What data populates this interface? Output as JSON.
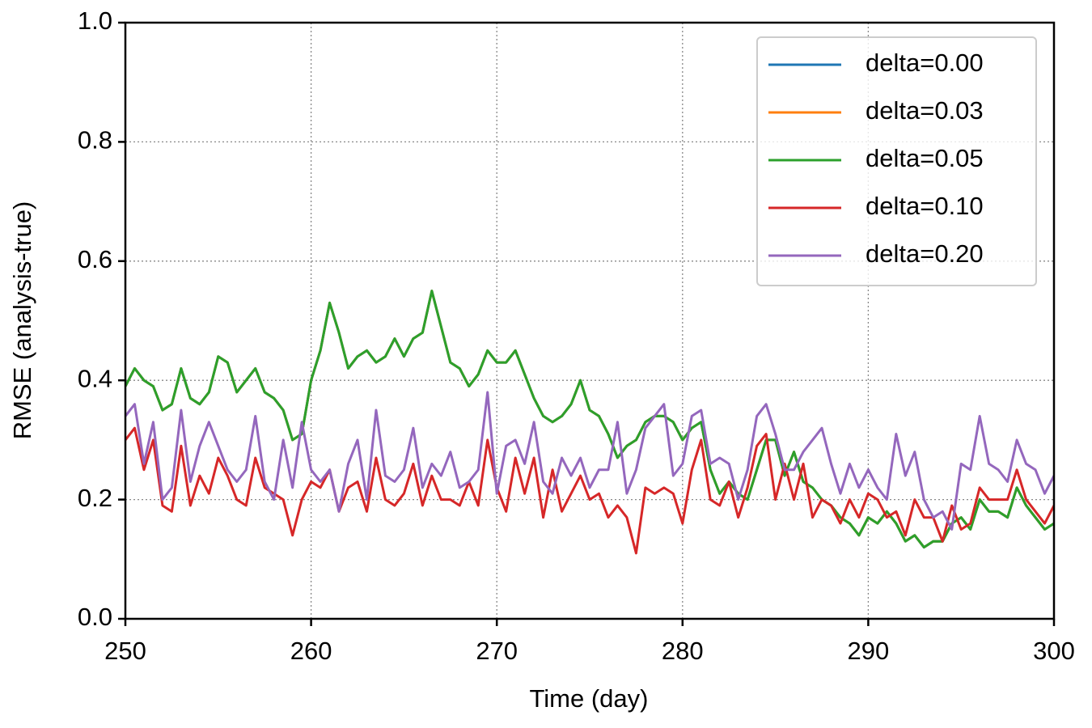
{
  "chart_data": {
    "type": "line",
    "x_label": "Time (day)",
    "y_label": "RMSE (analysis-true)",
    "xlim": [
      250,
      300
    ],
    "ylim": [
      0,
      1
    ],
    "xticks": [
      250,
      260,
      270,
      280,
      290,
      300
    ],
    "yticks": [
      {
        "value": 0,
        "label": "0.0"
      },
      0.2,
      0.4,
      0.6,
      0.8,
      {
        "value": 1,
        "label": "1.0"
      }
    ],
    "grid": true,
    "legend": "upper right",
    "x": [
      250,
      250.5,
      251,
      251.5,
      252,
      252.5,
      253,
      253.5,
      254,
      254.5,
      255,
      255.5,
      256,
      256.5,
      257,
      257.5,
      258,
      258.5,
      259,
      259.5,
      260,
      260.5,
      261,
      261.5,
      262,
      262.5,
      263,
      263.5,
      264,
      264.5,
      265,
      265.5,
      266,
      266.5,
      267,
      267.5,
      268,
      268.5,
      269,
      269.5,
      270,
      270.5,
      271,
      271.5,
      272,
      272.5,
      273,
      273.5,
      274,
      274.5,
      275,
      275.5,
      276,
      276.5,
      277,
      277.5,
      278,
      278.5,
      279,
      279.5,
      280,
      280.5,
      281,
      281.5,
      282,
      282.5,
      283,
      283.5,
      284,
      284.5,
      285,
      285.5,
      286,
      286.5,
      287,
      287.5,
      288,
      288.5,
      289,
      289.5,
      290,
      290.5,
      291,
      291.5,
      292,
      292.5,
      293,
      293.5,
      294,
      294.5,
      295,
      295.5,
      296,
      296.5,
      297,
      297.5,
      298,
      298.5,
      299,
      299.5,
      300
    ],
    "series": [
      {
        "name": "delta=0.00",
        "color": "#1f77b4",
        "values": [
          0.39,
          0.42,
          0.4,
          0.39,
          0.35,
          0.36,
          0.42,
          0.37,
          0.36,
          0.38,
          0.44,
          0.43,
          0.38,
          0.4,
          0.42,
          0.38,
          0.37,
          0.35,
          0.3,
          0.31,
          0.4,
          0.45,
          0.53,
          0.48,
          0.42,
          0.44,
          0.45,
          0.43,
          0.44,
          0.47,
          0.44,
          0.47,
          0.48,
          0.55,
          0.49,
          0.43,
          0.42,
          0.39,
          0.41,
          0.45,
          0.43,
          0.43,
          0.45,
          0.41,
          0.37,
          0.34,
          0.33,
          0.34,
          0.36,
          0.4,
          0.35,
          0.34,
          0.31,
          0.27,
          0.29,
          0.3,
          0.33,
          0.34,
          0.34,
          0.33,
          0.3,
          0.32,
          0.33,
          0.25,
          0.21,
          0.23,
          0.21,
          0.2,
          0.25,
          0.3,
          0.3,
          0.24,
          0.28,
          0.23,
          0.22,
          0.2,
          0.19,
          0.17,
          0.16,
          0.14,
          0.17,
          0.16,
          0.18,
          0.16,
          0.13,
          0.14,
          0.12,
          0.13,
          0.13,
          0.16,
          0.17,
          0.15,
          0.2,
          0.18,
          0.18,
          0.17,
          0.22,
          0.19,
          0.17,
          0.15,
          0.16
        ]
      },
      {
        "name": "delta=0.03",
        "color": "#ff7f0e",
        "values": [
          0.39,
          0.42,
          0.4,
          0.39,
          0.35,
          0.36,
          0.42,
          0.37,
          0.36,
          0.38,
          0.44,
          0.43,
          0.38,
          0.4,
          0.42,
          0.38,
          0.37,
          0.35,
          0.3,
          0.31,
          0.4,
          0.45,
          0.53,
          0.48,
          0.42,
          0.44,
          0.45,
          0.43,
          0.44,
          0.47,
          0.44,
          0.47,
          0.48,
          0.55,
          0.49,
          0.43,
          0.42,
          0.39,
          0.41,
          0.45,
          0.43,
          0.43,
          0.45,
          0.41,
          0.37,
          0.34,
          0.33,
          0.34,
          0.36,
          0.4,
          0.35,
          0.34,
          0.31,
          0.27,
          0.29,
          0.3,
          0.33,
          0.34,
          0.34,
          0.33,
          0.3,
          0.32,
          0.33,
          0.25,
          0.21,
          0.23,
          0.21,
          0.2,
          0.25,
          0.3,
          0.3,
          0.24,
          0.28,
          0.23,
          0.22,
          0.2,
          0.19,
          0.17,
          0.16,
          0.14,
          0.17,
          0.16,
          0.18,
          0.16,
          0.13,
          0.14,
          0.12,
          0.13,
          0.13,
          0.16,
          0.17,
          0.15,
          0.2,
          0.18,
          0.18,
          0.17,
          0.22,
          0.19,
          0.17,
          0.15,
          0.16
        ]
      },
      {
        "name": "delta=0.05",
        "color": "#2ca02c",
        "values": [
          0.39,
          0.42,
          0.4,
          0.39,
          0.35,
          0.36,
          0.42,
          0.37,
          0.36,
          0.38,
          0.44,
          0.43,
          0.38,
          0.4,
          0.42,
          0.38,
          0.37,
          0.35,
          0.3,
          0.31,
          0.4,
          0.45,
          0.53,
          0.48,
          0.42,
          0.44,
          0.45,
          0.43,
          0.44,
          0.47,
          0.44,
          0.47,
          0.48,
          0.55,
          0.49,
          0.43,
          0.42,
          0.39,
          0.41,
          0.45,
          0.43,
          0.43,
          0.45,
          0.41,
          0.37,
          0.34,
          0.33,
          0.34,
          0.36,
          0.4,
          0.35,
          0.34,
          0.31,
          0.27,
          0.29,
          0.3,
          0.33,
          0.34,
          0.34,
          0.33,
          0.3,
          0.32,
          0.33,
          0.25,
          0.21,
          0.23,
          0.21,
          0.2,
          0.25,
          0.3,
          0.3,
          0.24,
          0.28,
          0.23,
          0.22,
          0.2,
          0.19,
          0.17,
          0.16,
          0.14,
          0.17,
          0.16,
          0.18,
          0.16,
          0.13,
          0.14,
          0.12,
          0.13,
          0.13,
          0.16,
          0.17,
          0.15,
          0.2,
          0.18,
          0.18,
          0.17,
          0.22,
          0.19,
          0.17,
          0.15,
          0.16
        ]
      },
      {
        "name": "delta=0.10",
        "color": "#d62728",
        "values": [
          0.3,
          0.32,
          0.25,
          0.3,
          0.19,
          0.18,
          0.29,
          0.19,
          0.24,
          0.21,
          0.27,
          0.24,
          0.2,
          0.19,
          0.27,
          0.22,
          0.21,
          0.2,
          0.14,
          0.2,
          0.23,
          0.22,
          0.25,
          0.18,
          0.22,
          0.23,
          0.18,
          0.27,
          0.2,
          0.19,
          0.21,
          0.26,
          0.19,
          0.24,
          0.2,
          0.2,
          0.19,
          0.23,
          0.19,
          0.3,
          0.22,
          0.18,
          0.27,
          0.21,
          0.27,
          0.17,
          0.25,
          0.18,
          0.21,
          0.24,
          0.2,
          0.21,
          0.17,
          0.19,
          0.17,
          0.11,
          0.22,
          0.21,
          0.22,
          0.21,
          0.16,
          0.25,
          0.3,
          0.2,
          0.19,
          0.23,
          0.17,
          0.22,
          0.29,
          0.31,
          0.2,
          0.26,
          0.2,
          0.26,
          0.17,
          0.2,
          0.19,
          0.16,
          0.2,
          0.17,
          0.21,
          0.2,
          0.17,
          0.18,
          0.14,
          0.2,
          0.17,
          0.17,
          0.13,
          0.19,
          0.15,
          0.16,
          0.22,
          0.2,
          0.2,
          0.2,
          0.25,
          0.2,
          0.18,
          0.16,
          0.19
        ]
      },
      {
        "name": "delta=0.20",
        "color": "#9467bd",
        "values": [
          0.34,
          0.36,
          0.26,
          0.33,
          0.2,
          0.22,
          0.35,
          0.23,
          0.29,
          0.33,
          0.29,
          0.25,
          0.23,
          0.25,
          0.34,
          0.23,
          0.2,
          0.3,
          0.22,
          0.33,
          0.25,
          0.23,
          0.25,
          0.18,
          0.26,
          0.3,
          0.2,
          0.35,
          0.24,
          0.23,
          0.25,
          0.32,
          0.22,
          0.26,
          0.24,
          0.28,
          0.22,
          0.23,
          0.25,
          0.38,
          0.21,
          0.29,
          0.3,
          0.26,
          0.33,
          0.23,
          0.21,
          0.27,
          0.24,
          0.27,
          0.22,
          0.25,
          0.25,
          0.33,
          0.21,
          0.25,
          0.32,
          0.34,
          0.36,
          0.24,
          0.26,
          0.34,
          0.35,
          0.26,
          0.27,
          0.26,
          0.2,
          0.25,
          0.34,
          0.36,
          0.31,
          0.25,
          0.25,
          0.28,
          0.3,
          0.32,
          0.26,
          0.21,
          0.26,
          0.22,
          0.25,
          0.22,
          0.2,
          0.31,
          0.24,
          0.28,
          0.2,
          0.17,
          0.18,
          0.15,
          0.26,
          0.25,
          0.34,
          0.26,
          0.25,
          0.23,
          0.3,
          0.26,
          0.25,
          0.21,
          0.24
        ]
      }
    ]
  }
}
